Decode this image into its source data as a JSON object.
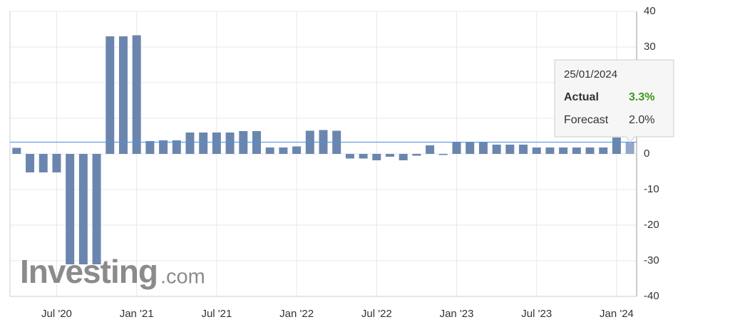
{
  "chart_data": {
    "type": "bar",
    "categories": [
      null,
      null,
      null,
      "Jul '20",
      null,
      null,
      null,
      null,
      null,
      "Jan '21",
      null,
      null,
      null,
      null,
      null,
      "Jul '21",
      null,
      null,
      null,
      null,
      null,
      "Jan '22",
      null,
      null,
      null,
      null,
      null,
      "Jul '22",
      null,
      null,
      null,
      null,
      null,
      "Jan '23",
      null,
      null,
      null,
      null,
      null,
      "Jul '23",
      null,
      null,
      null,
      null,
      null,
      "Jan '24",
      null
    ],
    "values": [
      1.7,
      -5.2,
      -5.2,
      -5.2,
      -31,
      -31,
      -31,
      33,
      33,
      33.3,
      3.6,
      3.8,
      3.8,
      6,
      6,
      6,
      6,
      6.4,
      6.4,
      1.8,
      1.8,
      2.1,
      6.5,
      6.7,
      6.5,
      -1.3,
      -1.3,
      -1.8,
      -0.8,
      -1.8,
      -0.5,
      2.4,
      -0.3,
      3.2,
      3.3,
      3.3,
      2.6,
      2.6,
      2.6,
      1.8,
      1.8,
      1.8,
      1.8,
      1.8,
      1.8,
      4.6,
      3.3
    ],
    "color": "#6b86ae",
    "highlight_color": "#93a8c9",
    "highlight_index": 46,
    "ylim": [
      -40,
      40
    ],
    "yticks": [
      -40,
      -30,
      -20,
      -10,
      0,
      10,
      20,
      30,
      40
    ],
    "grid": true,
    "tooltip": {
      "date": "25/01/2024",
      "rows": [
        {
          "label": "Actual",
          "value": "3.3%",
          "color": "#3a9a1a"
        },
        {
          "label": "Forecast",
          "value": "2.0%",
          "color": "#333333"
        }
      ]
    },
    "watermark": {
      "brand": "Investing",
      "suffix": ".com"
    }
  }
}
